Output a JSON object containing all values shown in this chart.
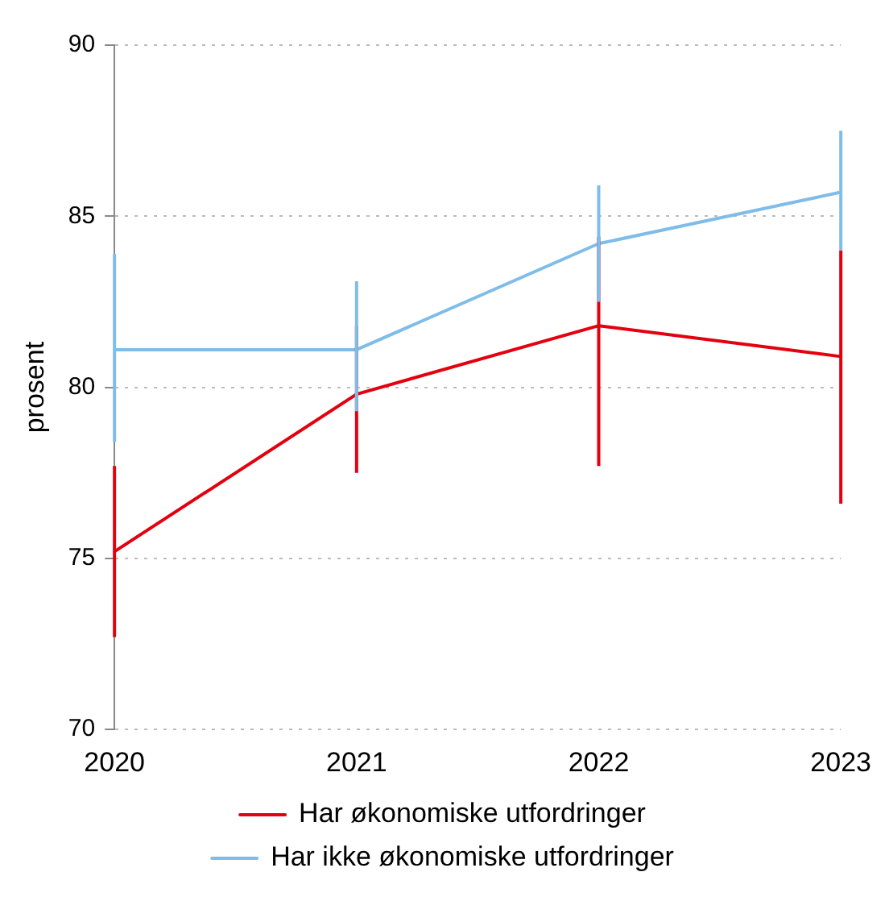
{
  "chart_data": {
    "type": "line",
    "ylabel": "prosent",
    "categories": [
      "2020",
      "2021",
      "2022",
      "2023"
    ],
    "series": [
      {
        "name": "Har økonomiske utfordringer",
        "color": "#e3000f",
        "values": [
          75.2,
          79.8,
          81.8,
          80.9
        ],
        "errors": [
          [
            72.7,
            77.7
          ],
          [
            77.5,
            81.8
          ],
          [
            77.7,
            84.4
          ],
          [
            76.6,
            84.0
          ]
        ]
      },
      {
        "name": "Har ikke økonomiske utfordringer",
        "color": "#7fbde8",
        "values": [
          81.1,
          81.1,
          84.2,
          85.7
        ],
        "errors": [
          [
            78.4,
            83.9
          ],
          [
            79.3,
            83.1
          ],
          [
            82.5,
            85.9
          ],
          [
            84.0,
            87.5
          ]
        ]
      }
    ],
    "ylim": [
      70,
      90
    ],
    "yticks": [
      70,
      75,
      80,
      85,
      90
    ],
    "grid": "y",
    "legend": "bottom",
    "marker": "none",
    "line_style": "solid"
  }
}
